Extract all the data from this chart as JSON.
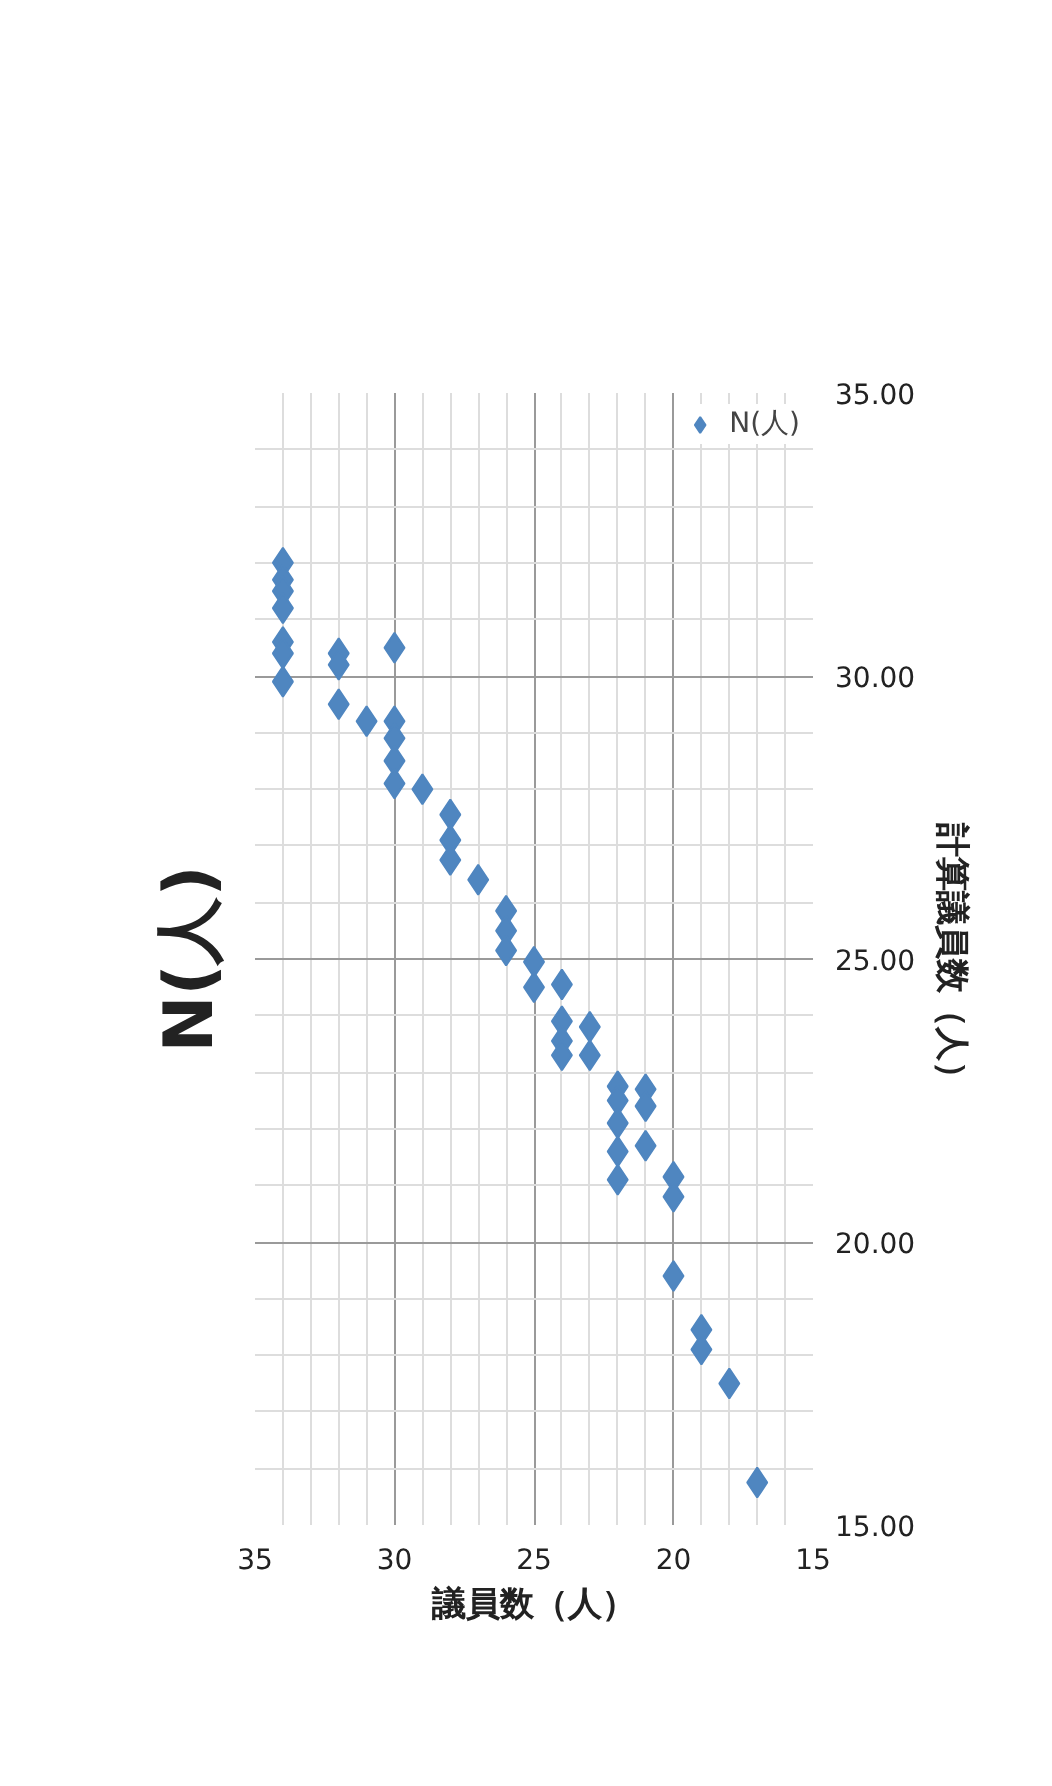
{
  "chart_data": {
    "type": "scatter",
    "title": "N(人)",
    "xlabel": "議員数（人）",
    "ylabel": "計算議員数（人）",
    "x": [
      34,
      34,
      34,
      34,
      34,
      34,
      34,
      32,
      32,
      32,
      30,
      31,
      30,
      30,
      30,
      30,
      29,
      28,
      28,
      28,
      27,
      26,
      26,
      26,
      25,
      24,
      25,
      24,
      24,
      24,
      23,
      23,
      22,
      22,
      22,
      22,
      22,
      21,
      21,
      21,
      20,
      20,
      20,
      19,
      19,
      18,
      17
    ],
    "series": [
      {
        "name": "N(人)",
        "color": "#4f86c0",
        "values": [
          32.0,
          31.7,
          31.5,
          31.2,
          30.6,
          30.4,
          29.9,
          30.4,
          30.2,
          29.5,
          30.5,
          29.2,
          29.2,
          28.9,
          28.5,
          28.1,
          28.0,
          27.55,
          27.1,
          26.75,
          26.4,
          25.85,
          25.5,
          25.15,
          24.95,
          24.55,
          24.5,
          23.9,
          23.55,
          23.3,
          23.8,
          23.3,
          22.75,
          22.5,
          22.1,
          21.6,
          21.1,
          22.7,
          22.4,
          21.7,
          21.15,
          20.8,
          19.4,
          18.45,
          18.1,
          17.5,
          15.75
        ]
      }
    ],
    "xlim": [
      35,
      15
    ],
    "xticks": [
      15,
      20,
      25,
      30,
      35
    ],
    "ylim": [
      15,
      35
    ],
    "yticks": [
      {
        "value": 15,
        "label": "15.00"
      },
      {
        "value": 20,
        "label": "20.00"
      },
      {
        "value": 25,
        "label": "25.00"
      },
      {
        "value": 30,
        "label": "30.00"
      },
      {
        "value": 35,
        "label": "35.00"
      }
    ],
    "grid": true,
    "legend": "top right",
    "marker": "diamond"
  }
}
